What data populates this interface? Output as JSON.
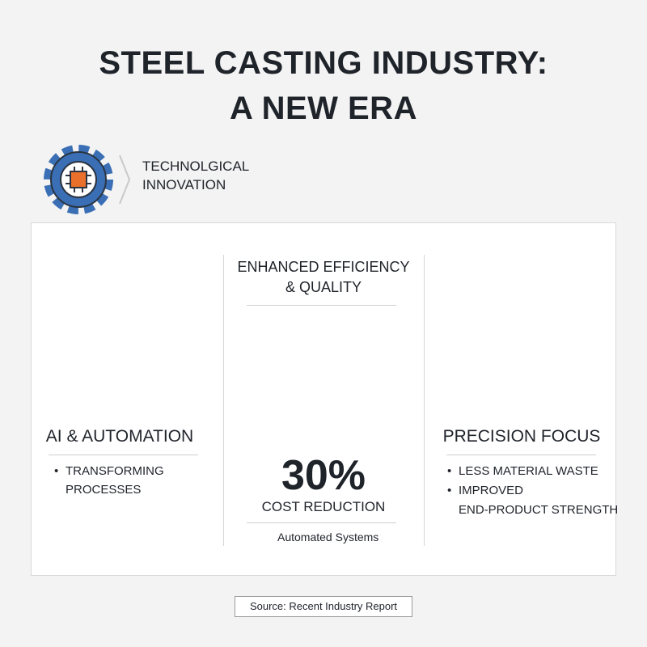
{
  "header": {
    "title": [
      "STEEL CASTING INDUSTRY:",
      "A NEW ERA"
    ],
    "subtitle": [
      "TECHNOLGICAL",
      "INNOVATION"
    ]
  },
  "columns": [
    {
      "heading": "AI & AUTOMATION",
      "bullets": [
        [
          "TRANSFORMING",
          "PROCESSES"
        ]
      ]
    },
    {
      "heading": [
        "ENHANCED EFFICIENCY",
        "& QUALITY"
      ],
      "stat": "30%",
      "stat_label": "COST REDUCTION",
      "note": "Automated Systems"
    },
    {
      "heading": "PRECISION FOCUS",
      "bullets": [
        [
          "LESS MATERIAL WASTE"
        ],
        [
          "IMPROVED",
          "END-PRODUCT STRENGTH"
        ]
      ]
    }
  ],
  "footer": {
    "source": "Source: Recent Industry Report"
  }
}
